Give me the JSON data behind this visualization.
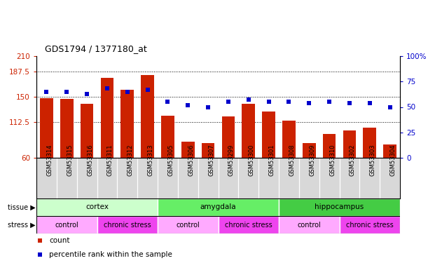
{
  "title": "GDS1794 / 1377180_at",
  "samples": [
    "GSM53314",
    "GSM53315",
    "GSM53316",
    "GSM53311",
    "GSM53312",
    "GSM53313",
    "GSM53305",
    "GSM53306",
    "GSM53307",
    "GSM53299",
    "GSM53300",
    "GSM53301",
    "GSM53308",
    "GSM53309",
    "GSM53310",
    "GSM53302",
    "GSM53303",
    "GSM53304"
  ],
  "counts": [
    148,
    147,
    140,
    178,
    160,
    182,
    122,
    84,
    82,
    121,
    140,
    128,
    115,
    82,
    95,
    100,
    105,
    80
  ],
  "percentiles": [
    65,
    65,
    63,
    68,
    65,
    67,
    55,
    52,
    50,
    55,
    57,
    55,
    55,
    54,
    55,
    54,
    54,
    50
  ],
  "ymin": 60,
  "ymax": 210,
  "pct_min": 0,
  "pct_max": 100,
  "bar_color": "#cc2200",
  "dot_color": "#0000cc",
  "tissue_groups": [
    {
      "label": "cortex",
      "start": 0,
      "end": 6,
      "color": "#ccffcc"
    },
    {
      "label": "amygdala",
      "start": 6,
      "end": 12,
      "color": "#66ee66"
    },
    {
      "label": "hippocampus",
      "start": 12,
      "end": 18,
      "color": "#44cc44"
    }
  ],
  "stress_groups": [
    {
      "label": "control",
      "start": 0,
      "end": 3,
      "color": "#ffaaff"
    },
    {
      "label": "chronic stress",
      "start": 3,
      "end": 6,
      "color": "#ee44ee"
    },
    {
      "label": "control",
      "start": 6,
      "end": 9,
      "color": "#ffaaff"
    },
    {
      "label": "chronic stress",
      "start": 9,
      "end": 12,
      "color": "#ee44ee"
    },
    {
      "label": "control",
      "start": 12,
      "end": 15,
      "color": "#ffaaff"
    },
    {
      "label": "chronic stress",
      "start": 15,
      "end": 18,
      "color": "#ee44ee"
    }
  ],
  "xticklabel_bg": "#d8d8d8",
  "bg_color": "#ffffff"
}
